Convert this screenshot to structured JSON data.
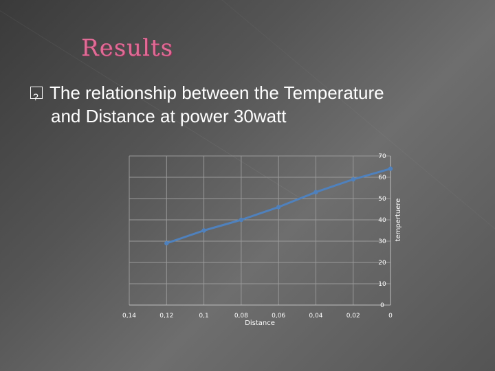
{
  "slide": {
    "title": "Results",
    "bullet_text_line1": "The relationship between the Temperature",
    "bullet_text_line2": "and Distance at power 30watt"
  },
  "chart_data": {
    "type": "line",
    "title": "",
    "xlabel": "Distance",
    "ylabel": "tempertuere",
    "x_reversed": true,
    "xlim": [
      0.14,
      0
    ],
    "ylim": [
      0,
      70
    ],
    "x_tick_labels": [
      "0,14",
      "0,12",
      "0,1",
      "0,08",
      "0,06",
      "0,04",
      "0,02",
      "0"
    ],
    "y_tick_labels": [
      "0",
      "10",
      "20",
      "30",
      "40",
      "50",
      "60",
      "70"
    ],
    "grid": true,
    "series": [
      {
        "x": [
          0.12,
          0.1,
          0.08,
          0.06,
          0.04,
          0.02,
          0
        ],
        "y": [
          29,
          35,
          40,
          46,
          53,
          59,
          64
        ],
        "color": "#4f81bd"
      }
    ]
  }
}
